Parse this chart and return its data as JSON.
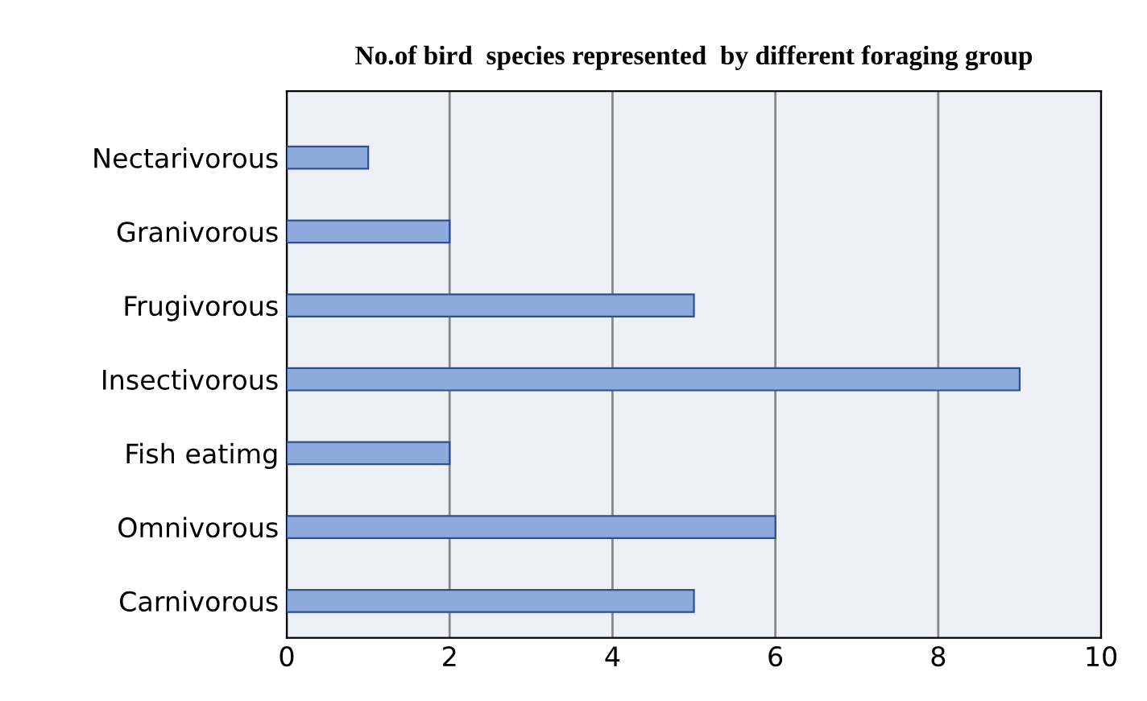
{
  "chart_data": {
    "type": "bar",
    "orientation": "horizontal",
    "title": "No.of bird  species represented  by different foraging group",
    "categories": [
      "Nectarivorous",
      "Granivorous",
      "Frugivorous",
      "Insectivorous",
      "Fish eatimg",
      "Omnivorous",
      "Carnivorous"
    ],
    "values": [
      1,
      2,
      5,
      9,
      2,
      6,
      5
    ],
    "color": "#8ea9db",
    "xlim": [
      0,
      10
    ],
    "xticks": [
      0,
      2,
      4,
      6,
      8,
      10
    ],
    "grid": "x"
  }
}
